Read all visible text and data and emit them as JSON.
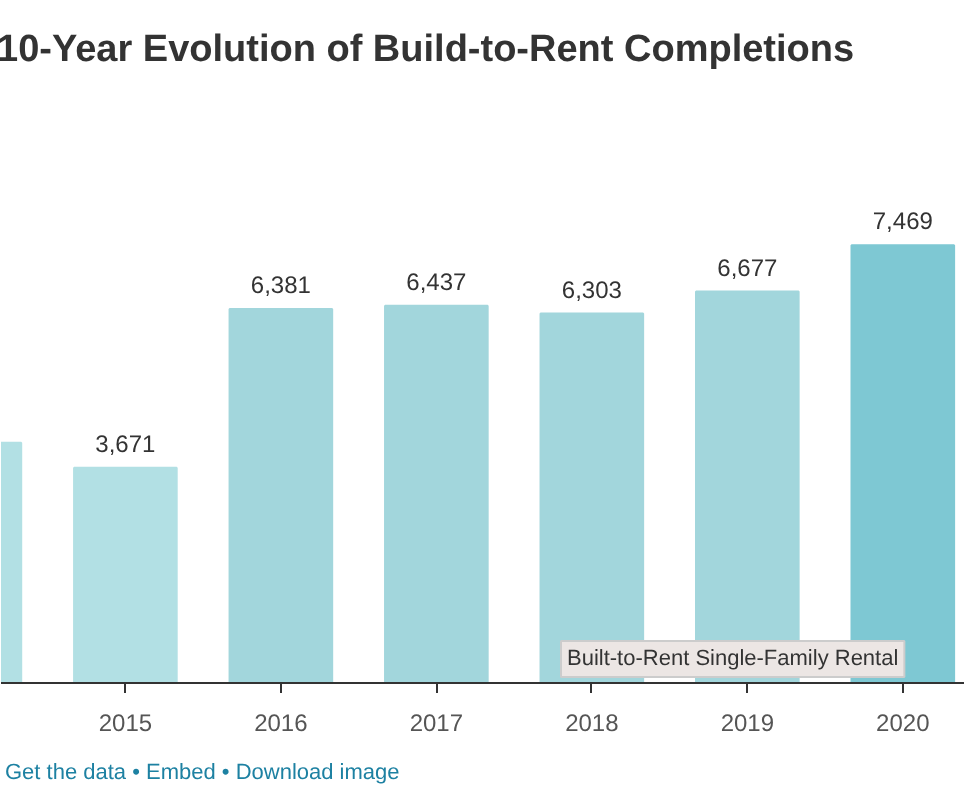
{
  "chart_data": {
    "type": "bar",
    "title": "10-Year Evolution of Build-to-Rent Completions",
    "categories": [
      null,
      "2015",
      "2016",
      "2017",
      "2018",
      "2019",
      "2020"
    ],
    "values": [
      4100,
      3671,
      6381,
      6437,
      6303,
      6677,
      7469
    ],
    "value_labels": [
      null,
      "3,671",
      "6,381",
      "6,437",
      "6,303",
      "6,677",
      "7,469"
    ],
    "colors": [
      "#b2e0e4",
      "#b2e0e4",
      "#a2d6dc",
      "#a2d6dc",
      "#a2d6dc",
      "#a2d6dc",
      "#7ec8d3"
    ],
    "annotations": [
      "Built-to-Rent Single-Family Rental",
      "Get the data • Embed • Download image"
    ]
  }
}
